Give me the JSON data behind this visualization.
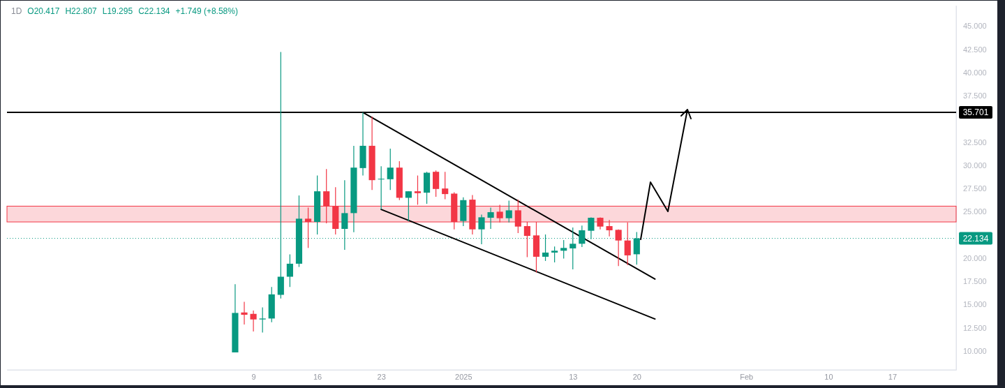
{
  "chart_data": {
    "type": "candlestick",
    "title": "1D",
    "annotations": [
      "O20.417",
      "H22.807",
      "L19.295",
      "C22.134",
      "+1.749 (+8.58%)"
    ],
    "x": [
      "2024-12-07",
      "2024-12-08",
      "2024-12-09",
      "2024-12-10",
      "2024-12-11",
      "2024-12-12",
      "2024-12-13",
      "2024-12-14",
      "2024-12-15",
      "2024-12-16",
      "2024-12-17",
      "2024-12-18",
      "2024-12-19",
      "2024-12-20",
      "2024-12-21",
      "2024-12-22",
      "2024-12-23",
      "2024-12-24",
      "2024-12-25",
      "2024-12-26",
      "2024-12-27",
      "2024-12-28",
      "2024-12-29",
      "2024-12-30",
      "2024-12-31",
      "2025-01-01",
      "2025-01-02",
      "2025-01-03",
      "2025-01-04",
      "2025-01-05",
      "2025-01-06",
      "2025-01-07",
      "2025-01-08",
      "2025-01-09",
      "2025-01-10",
      "2025-01-11",
      "2025-01-12",
      "2025-01-13",
      "2025-01-14",
      "2025-01-15",
      "2025-01-16",
      "2025-01-17",
      "2025-01-18",
      "2025-01-19",
      "2025-01-20"
    ],
    "ohlc": [
      [
        9.85,
        17.2,
        9.85,
        14.1
      ],
      [
        14.15,
        15.3,
        12.85,
        13.9
      ],
      [
        14.0,
        14.35,
        12.1,
        13.4
      ],
      [
        13.4,
        14.7,
        12.0,
        13.5
      ],
      [
        13.5,
        16.9,
        13.1,
        16.1
      ],
      [
        16.05,
        42.2,
        15.65,
        18.0
      ],
      [
        18.0,
        20.4,
        16.9,
        19.4
      ],
      [
        19.4,
        26.75,
        19.05,
        24.25
      ],
      [
        24.25,
        25.45,
        21.1,
        23.9
      ],
      [
        23.9,
        28.9,
        22.55,
        27.2
      ],
      [
        27.2,
        29.6,
        23.75,
        25.6
      ],
      [
        25.6,
        27.65,
        22.55,
        23.15
      ],
      [
        23.15,
        28.4,
        20.9,
        24.85
      ],
      [
        24.85,
        32.1,
        22.8,
        29.75
      ],
      [
        29.7,
        35.7,
        28.9,
        32.1
      ],
      [
        32.1,
        35.25,
        27.35,
        28.4
      ],
      [
        28.5,
        29.9,
        25.25,
        28.55
      ],
      [
        28.5,
        31.8,
        27.35,
        29.75
      ],
      [
        29.75,
        30.45,
        26.25,
        26.5
      ],
      [
        26.5,
        27.2,
        23.95,
        27.2
      ],
      [
        27.2,
        28.9,
        25.75,
        27.0
      ],
      [
        27.05,
        29.3,
        25.85,
        29.2
      ],
      [
        29.3,
        29.45,
        26.6,
        27.45
      ],
      [
        27.5,
        29.3,
        26.35,
        26.9
      ],
      [
        26.95,
        27.1,
        23.1,
        23.9
      ],
      [
        24.0,
        26.55,
        23.45,
        26.25
      ],
      [
        26.3,
        26.8,
        22.55,
        23.1
      ],
      [
        23.1,
        24.7,
        21.5,
        24.4
      ],
      [
        24.35,
        25.45,
        23.15,
        24.95
      ],
      [
        25.0,
        25.75,
        23.85,
        24.3
      ],
      [
        24.3,
        26.2,
        23.85,
        25.15
      ],
      [
        25.15,
        26.3,
        22.7,
        23.4
      ],
      [
        23.45,
        23.9,
        20.1,
        22.4
      ],
      [
        22.45,
        23.9,
        18.45,
        20.15
      ],
      [
        20.15,
        22.55,
        19.7,
        20.6
      ],
      [
        20.6,
        21.25,
        19.55,
        20.8
      ],
      [
        20.8,
        21.95,
        19.95,
        21.1
      ],
      [
        21.05,
        23.3,
        18.8,
        21.55
      ],
      [
        21.55,
        23.5,
        21.2,
        23.0
      ],
      [
        22.95,
        24.4,
        22.05,
        24.35
      ],
      [
        24.35,
        24.4,
        23.1,
        23.4
      ],
      [
        23.45,
        24.1,
        22.35,
        23.0
      ],
      [
        23.05,
        23.1,
        19.15,
        21.9
      ],
      [
        21.9,
        23.85,
        19.25,
        20.3
      ],
      [
        20.417,
        22.807,
        19.295,
        22.134
      ]
    ],
    "colors": [
      "#089981",
      "#f23645",
      "#f23645",
      "#089981",
      "#089981",
      "#089981",
      "#089981",
      "#089981",
      "#f23645",
      "#089981",
      "#f23645",
      "#f23645",
      "#089981",
      "#089981",
      "#089981",
      "#f23645",
      "#089981",
      "#089981",
      "#f23645",
      "#089981",
      "#f23645",
      "#089981",
      "#f23645",
      "#f23645",
      "#f23645",
      "#089981",
      "#f23645",
      "#089981",
      "#089981",
      "#f23645",
      "#089981",
      "#f23645",
      "#f23645",
      "#f23645",
      "#089981",
      "#089981",
      "#089981",
      "#089981",
      "#089981",
      "#089981",
      "#f23645",
      "#f23645",
      "#f23645",
      "#f23645",
      "#089981"
    ],
    "series": [
      {
        "type": "line",
        "x": [
          "2024-12-21",
          "2025-01-22"
        ],
        "values": [
          35.7,
          17.75
        ],
        "color": "#000000"
      },
      {
        "type": "line",
        "x": [
          "2024-12-23",
          "2025-01-22"
        ],
        "values": [
          25.25,
          13.45
        ],
        "color": "#000000"
      }
    ],
    "ref_lines": [
      {
        "axis": "y",
        "value": 35.701,
        "label": "35.701",
        "color": "#000000",
        "line_style": "solid"
      },
      {
        "axis": "y",
        "value": 22.134,
        "label": "22.134",
        "color": "#089981",
        "line_style": "dotted"
      }
    ],
    "bands": [
      {
        "axis": "y",
        "from": 23.9,
        "to": 25.6,
        "color": "#f23645"
      }
    ],
    "xlim": [
      "2024-11-12",
      "2025-02-24"
    ],
    "xticks": [
      {
        "value": "2024-12-09",
        "label": "9"
      },
      {
        "value": "2024-12-16",
        "label": "16"
      },
      {
        "value": "2024-12-23",
        "label": "23"
      },
      {
        "value": "2025-01-01",
        "label": "2025"
      },
      {
        "value": "2025-01-13",
        "label": "13"
      },
      {
        "value": "2025-01-20",
        "label": "20"
      },
      {
        "value": "2025-02-01",
        "label": "Feb"
      },
      {
        "value": "2025-02-10",
        "label": "10"
      },
      {
        "value": "2025-02-17",
        "label": "17"
      }
    ],
    "ylim": [
      7.97,
      47.2
    ],
    "yticks": [
      {
        "value": 10,
        "label": "10.000"
      },
      {
        "value": 12.5,
        "label": "12.500"
      },
      {
        "value": 15,
        "label": "15.000"
      },
      {
        "value": 17.5,
        "label": "17.500"
      },
      {
        "value": 20,
        "label": "20.000"
      },
      {
        "value": 25,
        "label": "25.000"
      },
      {
        "value": 27.5,
        "label": "27.500"
      },
      {
        "value": 30,
        "label": "30.000"
      },
      {
        "value": 32.5,
        "label": "32.500"
      },
      {
        "value": 37.5,
        "label": "37.500"
      },
      {
        "value": 40,
        "label": "40.000"
      },
      {
        "value": 42.5,
        "label": "42.500"
      },
      {
        "value": 45,
        "label": "45.000"
      }
    ]
  }
}
